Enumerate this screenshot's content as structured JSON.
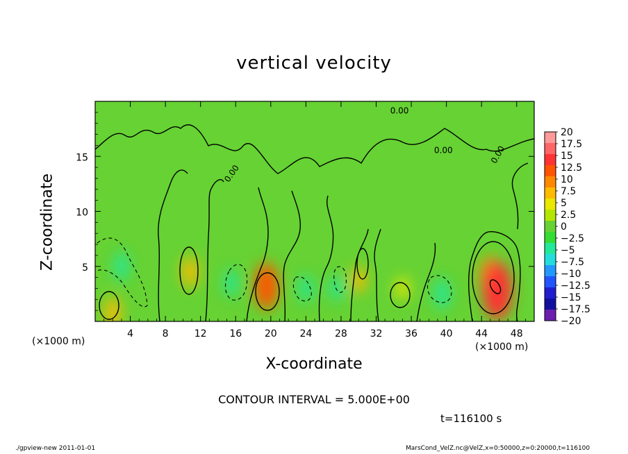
{
  "chart_data": {
    "type": "heatmap",
    "title": "vertical velocity",
    "xlabel": "X-coordinate",
    "ylabel": "Z-coordinate",
    "x_unit_label": "(×1000 m)",
    "xlim": [
      0,
      50
    ],
    "ylim": [
      0,
      20
    ],
    "x_ticks": [
      4,
      8,
      12,
      16,
      20,
      24,
      28,
      32,
      36,
      40,
      44,
      48
    ],
    "y_ticks": [
      5,
      10,
      15
    ],
    "colorbar": {
      "levels": [
        "20",
        "17.5",
        "15",
        "12.5",
        "10",
        "7.5",
        "5",
        "2.5",
        "0",
        "−2.5",
        "−5",
        "−7.5",
        "−10",
        "−12.5",
        "−15",
        "−17.5",
        "−20"
      ],
      "colors": [
        "#ff9a9a",
        "#ff6666",
        "#ff3333",
        "#ff5500",
        "#ff8800",
        "#ffbb00",
        "#e8e800",
        "#b3e600",
        "#66d233",
        "#33dd33",
        "#22e899",
        "#22dddd",
        "#2299ff",
        "#2255ff",
        "#1f1fd0",
        "#1010a0",
        "#6a1faf"
      ]
    },
    "contour_interval_text": "CONTOUR INTERVAL = 5.000E+00",
    "time_text": "t=116100 s",
    "contour_label": "0.00",
    "footer_left": "./gpview-new   2011-01-01",
    "footer_right": "MarsCond_VelZ.nc@VelZ,x=0:50000,z=0:20000,t=116100",
    "features": [
      {
        "x": 10.8,
        "z": 4.5,
        "value": 7.0
      },
      {
        "x": 19.5,
        "z": 3.2,
        "value": 10.5
      },
      {
        "x": 30.0,
        "z": 3.8,
        "value": 6.0
      },
      {
        "x": 35.0,
        "z": 3.0,
        "value": 5.0
      },
      {
        "x": 45.0,
        "z": 4.0,
        "value": 9.5
      },
      {
        "x": 45.8,
        "z": 2.8,
        "value": 13.0
      },
      {
        "x": 2.0,
        "z": 0.8,
        "value": 7.0
      },
      {
        "x": 3.0,
        "z": 5.0,
        "value": -6.5
      },
      {
        "x": 15.5,
        "z": 3.5,
        "value": -6.0
      },
      {
        "x": 24.0,
        "z": 3.0,
        "value": -6.0
      },
      {
        "x": 27.5,
        "z": 3.0,
        "value": -5.5
      },
      {
        "x": 39.5,
        "z": 2.5,
        "value": -7.0
      }
    ]
  }
}
